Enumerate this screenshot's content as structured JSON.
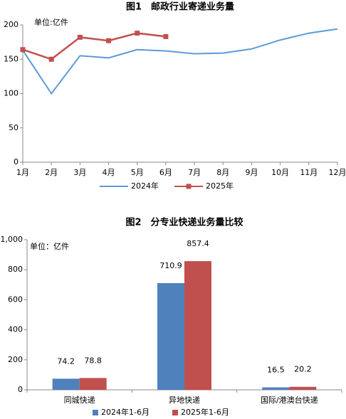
{
  "chart_data": [
    {
      "type": "line",
      "title": "图1　邮政行业寄递业务量",
      "unit": "单位:亿件",
      "categories": [
        "1月",
        "2月",
        "3月",
        "4月",
        "5月",
        "6月",
        "7月",
        "8月",
        "9月",
        "10月",
        "11月",
        "12月"
      ],
      "series": [
        {
          "name": "2024年",
          "color": "#5b9bd5",
          "marker": false,
          "values": [
            163,
            100,
            155,
            152,
            164,
            162,
            158,
            159,
            165,
            178,
            188,
            194
          ]
        },
        {
          "name": "2025年",
          "color": "#c0504d",
          "marker": true,
          "values": [
            164,
            150,
            182,
            177,
            188,
            183,
            null,
            null,
            null,
            null,
            null,
            null
          ]
        }
      ],
      "ylim": [
        0,
        200
      ],
      "yticks": [
        0,
        50,
        100,
        150,
        200
      ],
      "legend": "bottom"
    },
    {
      "type": "bar",
      "title": "图2　分专业快递业务量比较",
      "unit": "单位：亿件",
      "categories": [
        "同城快递",
        "异地快递",
        "国际/港澳台快递"
      ],
      "series": [
        {
          "name": "2024年1-6月",
          "color": "#4f81bd",
          "values": [
            74.2,
            710.9,
            16.5
          ]
        },
        {
          "name": "2025年1-6月",
          "color": "#c0504d",
          "values": [
            78.8,
            857.4,
            20.2
          ]
        }
      ],
      "ylim": [
        0,
        1000
      ],
      "yticks": [
        0,
        200,
        400,
        600,
        800,
        {
          "value": 1000,
          "label": "1,000"
        }
      ],
      "legend": "bottom"
    }
  ]
}
